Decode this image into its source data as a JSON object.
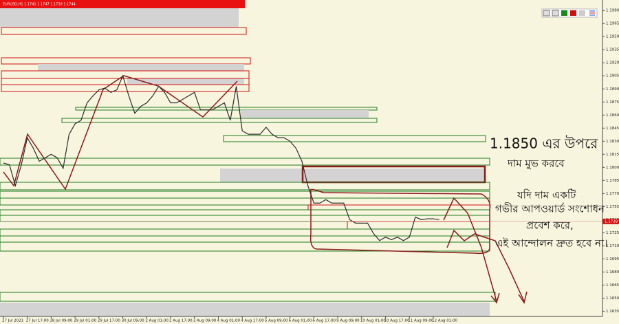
{
  "chart_data": {
    "type": "line",
    "title": "EURUSD,H1  1.1741 1.1747 1.1738 1.1744",
    "categories": [
      "27 Jul 2021",
      null,
      null,
      null,
      "27 Jul 17:00",
      null,
      null,
      null,
      "28 Jul 09:00",
      null,
      null,
      null,
      "29 Jul 01:00",
      null,
      null,
      null,
      "29 Jul 17:00",
      null,
      null,
      null,
      "30 Jul 09:00",
      null,
      null,
      null,
      "2 Aug 01:00",
      null,
      null,
      null,
      "2 Aug 17:00",
      null,
      null,
      null,
      "3 Aug 09:00",
      null,
      null,
      null,
      "4 Aug 01:00",
      null,
      null,
      null,
      "4 Aug 17:00",
      null,
      null,
      null,
      "5 Aug 09:00",
      null,
      null,
      null,
      "6 Aug 01:00",
      null,
      null,
      null,
      "6 Aug 17:00",
      null,
      null,
      null,
      "9 Aug 09:00",
      null,
      null,
      null,
      "10 Aug 01:00",
      null,
      null,
      null,
      "10 Aug 17:00",
      null,
      null,
      null,
      "11 Aug 09:00",
      null,
      null,
      null,
      "12 Aug 01:00",
      null
    ],
    "series": [
      {
        "name": "EURUSD",
        "color": "#2b2b2b",
        "values": [
          1.1805,
          1.1803,
          1.1779,
          1.1803,
          1.1834,
          1.1822,
          1.1807,
          1.1811,
          1.1815,
          1.1811,
          1.1799,
          1.1838,
          1.185,
          1.1854,
          1.1874,
          1.1882,
          1.1889,
          1.1891,
          1.1886,
          1.1889,
          1.1905,
          1.1882,
          1.1862,
          1.187,
          1.1874,
          1.1882,
          1.1893,
          1.1886,
          1.1874,
          1.1874,
          1.1878,
          1.1882,
          1.1886,
          1.1866,
          1.1866,
          1.1866,
          1.187,
          1.1874,
          1.1854,
          1.1893,
          1.1842,
          1.1838,
          1.1838,
          1.1838,
          1.1846,
          1.1838,
          1.1834,
          1.1834,
          1.183,
          1.1822,
          1.1807,
          1.1779,
          1.1759,
          1.1759,
          1.1763,
          1.1759,
          1.1759,
          1.1759,
          1.174,
          1.1736,
          1.1736,
          1.1736,
          1.1724,
          1.1716,
          1.172,
          1.1717,
          1.172,
          1.1716,
          1.172,
          1.1743,
          1.174,
          1.1741,
          1.1741,
          1.174
        ]
      }
    ],
    "ylim": [
      1.1629,
      1.1992
    ],
    "yticks": [
      {
        "value": 1.198,
        "label": "1.1980"
      },
      {
        "value": 1.1965,
        "label": "1.1965"
      },
      {
        "value": 1.195,
        "label": "1.1950"
      },
      {
        "value": 1.1935,
        "label": "1.1935"
      },
      {
        "value": 1.192,
        "label": "1.1920"
      },
      {
        "value": 1.1905,
        "label": "1.1905"
      },
      {
        "value": 1.189,
        "label": "1.1890"
      },
      {
        "value": 1.1875,
        "label": "1.1875"
      },
      {
        "value": 1.186,
        "label": "1.1860"
      },
      {
        "value": 1.1845,
        "label": "1.1845"
      },
      {
        "value": 1.183,
        "label": "1.1830"
      },
      {
        "value": 1.1815,
        "label": "1.1815"
      },
      {
        "value": 1.18,
        "label": "1.1800"
      },
      {
        "value": 1.1785,
        "label": "1.1785"
      },
      {
        "value": 1.177,
        "label": "1.1770"
      },
      {
        "value": 1.1755,
        "label": "1.1755"
      },
      {
        "value": 1.174,
        "label": "1.1740"
      },
      {
        "value": 1.1725,
        "label": "1.1725"
      },
      {
        "value": 1.171,
        "label": "1.1710"
      },
      {
        "value": 1.1695,
        "label": "1.1695"
      },
      {
        "value": 1.168,
        "label": "1.1680"
      },
      {
        "value": 1.1665,
        "label": "1.1665"
      },
      {
        "value": 1.165,
        "label": "1.1650"
      },
      {
        "value": 1.1635,
        "label": "1.1635"
      }
    ],
    "current_price": 1.1738,
    "annotations": [
      "1.1850 এর উপরে",
      "দাম মুভ করবে",
      "যদি দাম একটি",
      "গভীর আপওয়ার্ড সংশোধন",
      "প্রবেশ করে,",
      "এই আন্দোলন দ্রুত হবে না।"
    ]
  }
}
